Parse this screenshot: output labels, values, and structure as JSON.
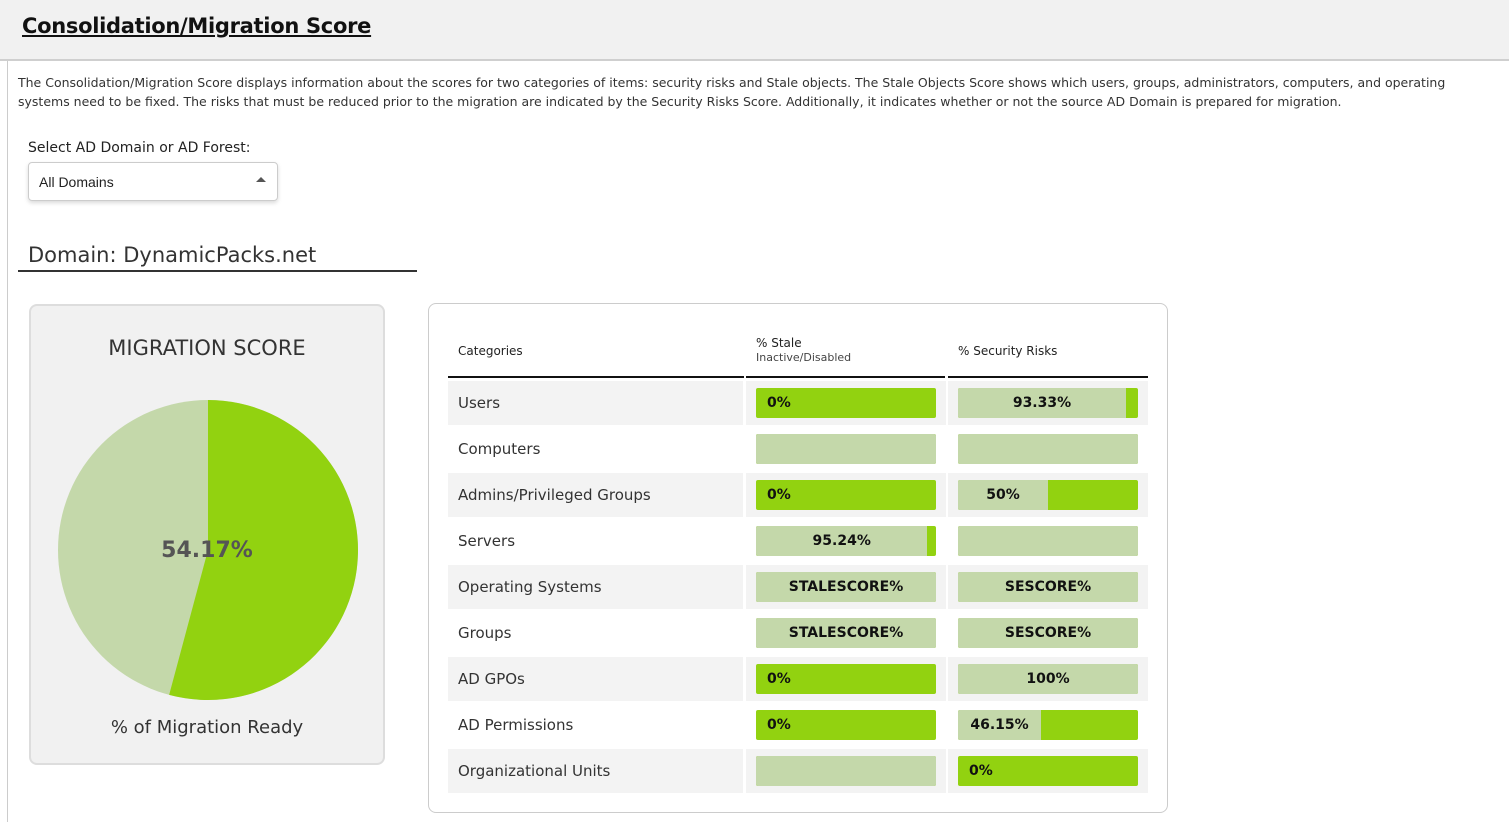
{
  "header": {
    "title": "Consolidation/Migration Score"
  },
  "description": "The Consolidation/Migration Score displays information about the scores for two categories of items: security risks and Stale objects. The Stale Objects Score shows which users, groups, administrators, computers, and operating systems need to be fixed. The risks that must be reduced prior to the migration are indicated by the Security Risks Score. Additionally, it indicates whether or not the source AD Domain is prepared for migration.",
  "selector": {
    "label": "Select AD Domain or AD Forest:",
    "value": "All Domains"
  },
  "domain": "Domain: DynamicPacks.net",
  "score": {
    "title": "MIGRATION SCORE",
    "value": "54.17%",
    "value_num": 54.17,
    "caption": "% of Migration Ready",
    "colors": {
      "ready": "#92d210",
      "rest": "#c4d8aa"
    }
  },
  "table": {
    "headers": {
      "categories": "Categories",
      "stale": "% Stale",
      "stale_sub": "Inactive/Disabled",
      "security": "% Security Risks"
    },
    "rows": [
      {
        "category": "Users",
        "stale": {
          "label": "0%",
          "light": 0
        },
        "security": {
          "label": "93.33%",
          "light": 93.33
        }
      },
      {
        "category": "Computers",
        "stale": {
          "label": "",
          "light": 100
        },
        "security": {
          "label": "",
          "light": 100
        }
      },
      {
        "category": "Admins/Privileged Groups",
        "stale": {
          "label": "0%",
          "light": 0
        },
        "security": {
          "label": "50%",
          "light": 50
        }
      },
      {
        "category": "Servers",
        "stale": {
          "label": "95.24%",
          "light": 95.24
        },
        "security": {
          "label": "",
          "light": 100
        }
      },
      {
        "category": "Operating Systems",
        "stale": {
          "label": "STALESCORE%",
          "light": 100
        },
        "security": {
          "label": "SESCORE%",
          "light": 100
        }
      },
      {
        "category": "Groups",
        "stale": {
          "label": "STALESCORE%",
          "light": 100
        },
        "security": {
          "label": "SESCORE%",
          "light": 100
        }
      },
      {
        "category": "AD GPOs",
        "stale": {
          "label": "0%",
          "light": 0
        },
        "security": {
          "label": "100%",
          "light": 100
        }
      },
      {
        "category": "AD Permissions",
        "stale": {
          "label": "0%",
          "light": 0
        },
        "security": {
          "label": "46.15%",
          "light": 46.15
        }
      },
      {
        "category": "Organizational Units",
        "stale": {
          "label": "",
          "light": 100
        },
        "security": {
          "label": "0%",
          "light": 0
        }
      }
    ]
  }
}
